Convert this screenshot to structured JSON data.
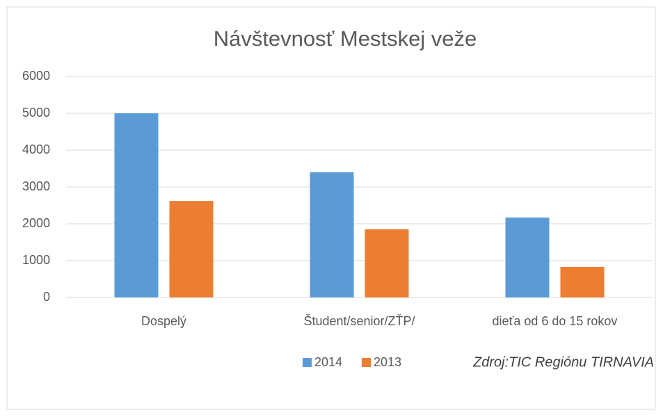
{
  "chart_data": {
    "type": "bar",
    "title": "Návštevnosť Mestskej veže",
    "categories": [
      "Dospelý",
      "Študent/senior/ZŤP/",
      "dieťa od 6 do 15 rokov"
    ],
    "series": [
      {
        "name": "2014",
        "color": "#5b9bd5",
        "values": [
          5000,
          3400,
          2170
        ]
      },
      {
        "name": "2013",
        "color": "#ed7d31",
        "values": [
          2620,
          1850,
          830
        ]
      }
    ],
    "ylim": [
      0,
      6000
    ],
    "yticks": [
      0,
      1000,
      2000,
      3000,
      4000,
      5000,
      6000
    ],
    "grid": true,
    "annotation": "Zdroj:TIC Regiónu TIRNAVIA",
    "legend": "bottom"
  }
}
